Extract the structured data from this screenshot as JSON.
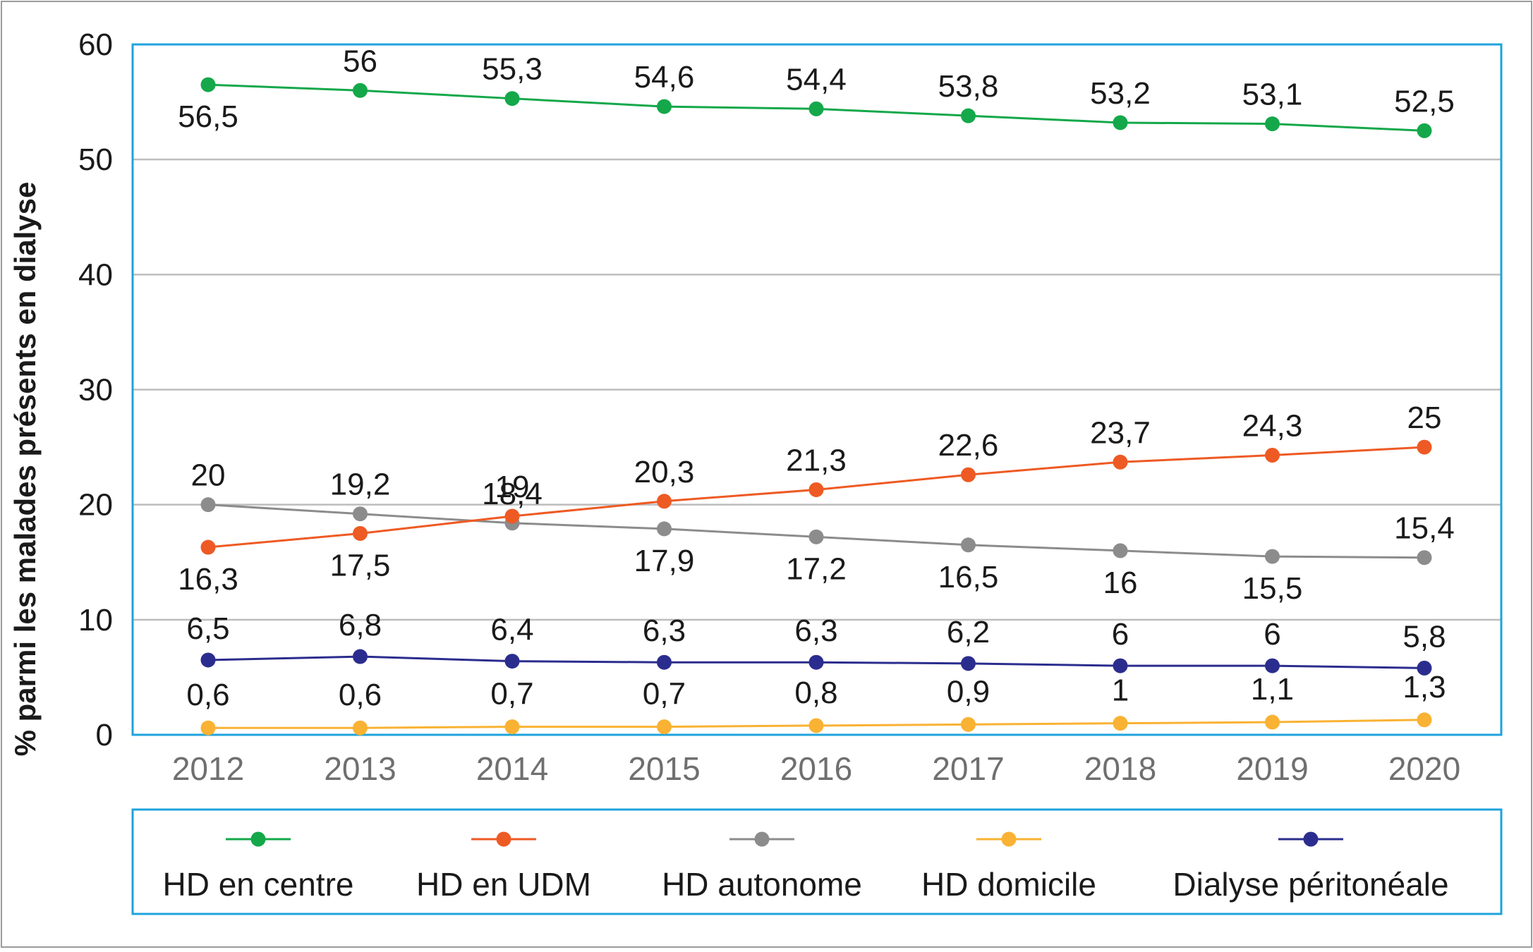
{
  "chart_data": {
    "type": "line",
    "ylabel": "% parmi les malades présents en dialyse",
    "xlabel": "",
    "ylim": [
      0,
      60
    ],
    "yticks": [
      0,
      10,
      20,
      30,
      40,
      50,
      60
    ],
    "x": [
      "2012",
      "2013",
      "2014",
      "2015",
      "2016",
      "2017",
      "2018",
      "2019",
      "2020"
    ],
    "grid": "horizontal",
    "legend_position": "bottom",
    "series": [
      {
        "name": "HD en centre",
        "color": "#14a84a",
        "values": [
          56.5,
          56,
          55.3,
          54.6,
          54.4,
          53.8,
          53.2,
          53.1,
          52.5
        ],
        "labels": [
          "56,5",
          "56",
          "55,3",
          "54,6",
          "54,4",
          "53,8",
          "53,2",
          "53,1",
          "52,5"
        ]
      },
      {
        "name": "HD en UDM",
        "color": "#ee5a24",
        "values": [
          16.3,
          17.5,
          19,
          20.3,
          21.3,
          22.6,
          23.7,
          24.3,
          25
        ],
        "labels": [
          "16,3",
          "17,5",
          "19",
          "20,3",
          "21,3",
          "22,6",
          "23,7",
          "24,3",
          "25"
        ]
      },
      {
        "name": "HD autonome",
        "color": "#8c8c8c",
        "values": [
          20,
          19.2,
          18.4,
          17.9,
          17.2,
          16.5,
          16,
          15.5,
          15.4
        ],
        "labels": [
          "20",
          "19,2",
          "18,4",
          "17,9",
          "17,2",
          "16,5",
          "16",
          "15,5",
          "15,4"
        ]
      },
      {
        "name": "HD domicile",
        "color": "#f9b233",
        "values": [
          0.6,
          0.6,
          0.7,
          0.7,
          0.8,
          0.9,
          1,
          1.1,
          1.3
        ],
        "labels": [
          "0,6",
          "0,6",
          "0,7",
          "0,7",
          "0,8",
          "0,9",
          "1",
          "1,1",
          "1,3"
        ]
      },
      {
        "name": "Dialyse péritonéale",
        "color": "#2b2d8e",
        "values": [
          6.5,
          6.8,
          6.4,
          6.3,
          6.3,
          6.2,
          6,
          6,
          5.8
        ],
        "labels": [
          "6,5",
          "6,8",
          "6,4",
          "6,3",
          "6,3",
          "6,2",
          "6",
          "6",
          "5,8"
        ]
      }
    ]
  }
}
